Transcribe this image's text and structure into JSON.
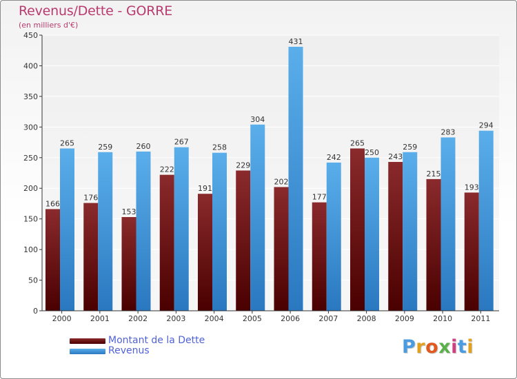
{
  "title": "Revenus/Dette - GORRE",
  "subtitle": "(en milliers d'€)",
  "colors": {
    "debt": "#7a1618",
    "revenue": "#4aa0e2",
    "title": "#b83a6e",
    "legend_text": "#5062d8"
  },
  "legend": {
    "debt_label": "Montant de la Dette",
    "revenue_label": "Revenus"
  },
  "logo": {
    "text": "Proxiti"
  },
  "chart_data": {
    "type": "bar",
    "title": "Revenus/Dette - GORRE",
    "ylabel": "(en milliers d'€)",
    "xlabel": "",
    "ylim": [
      0,
      450
    ],
    "yticks": [
      0,
      50,
      100,
      150,
      200,
      250,
      300,
      350,
      400,
      450
    ],
    "grid": true,
    "legend_position": "bottom-left",
    "categories": [
      "2000",
      "2001",
      "2002",
      "2003",
      "2004",
      "2005",
      "2006",
      "2007",
      "2008",
      "2009",
      "2010",
      "2011"
    ],
    "series": [
      {
        "name": "Montant de la Dette",
        "color": "#7a1618",
        "values": [
          166,
          176,
          153,
          222,
          191,
          229,
          202,
          177,
          265,
          243,
          215,
          193
        ]
      },
      {
        "name": "Revenus",
        "color": "#4aa0e2",
        "values": [
          265,
          259,
          260,
          267,
          258,
          304,
          431,
          242,
          250,
          259,
          283,
          294
        ]
      }
    ]
  }
}
